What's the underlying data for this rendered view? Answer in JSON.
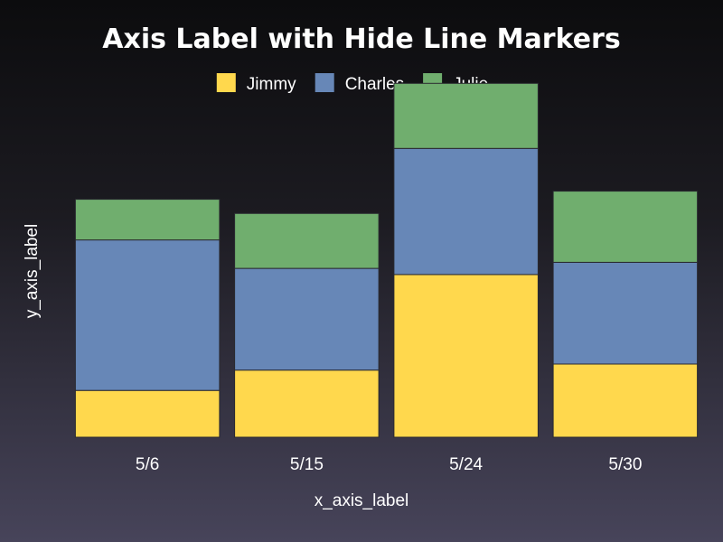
{
  "chart_data": {
    "type": "bar",
    "stacked": true,
    "title": "Axis Label with Hide Line Markers",
    "xlabel": "x_axis_label",
    "ylabel": "y_axis_label",
    "categories": [
      "5/6",
      "5/15",
      "5/24",
      "5/30"
    ],
    "series": [
      {
        "name": "Jimmy",
        "color": "#ffd84d",
        "values": [
          2.3,
          3.3,
          8.0,
          3.6
        ]
      },
      {
        "name": "Charles",
        "color": "#6787b7",
        "values": [
          7.4,
          5.0,
          6.2,
          5.0
        ]
      },
      {
        "name": "Julie",
        "color": "#70ae6e",
        "values": [
          2.0,
          2.7,
          3.2,
          3.5
        ]
      }
    ],
    "ylim": [
      0,
      17.5
    ],
    "grid": false,
    "y_ticks_visible": false,
    "legend_position": "top"
  }
}
